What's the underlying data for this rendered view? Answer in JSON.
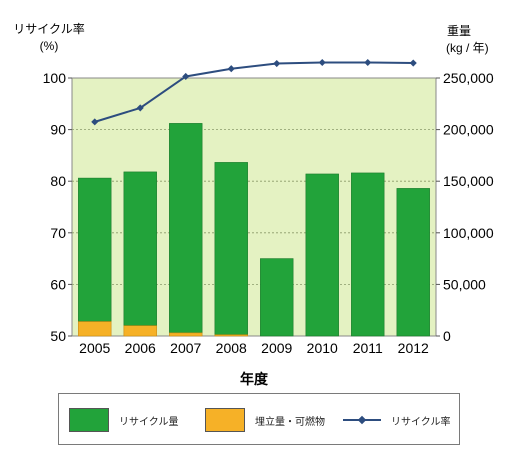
{
  "chart_data": {
    "type": "bar",
    "categories": [
      "2005",
      "2006",
      "2007",
      "2008",
      "2009",
      "2010",
      "2011",
      "2012"
    ],
    "series": [
      {
        "name": "リサイクル量",
        "axis": "right",
        "color": "#22a33a",
        "values": [
          139000,
          149000,
          203000,
          167000,
          75000,
          157000,
          158000,
          143000
        ]
      },
      {
        "name": "埋立量・可燃物",
        "axis": "right",
        "color": "#f6b127",
        "values": [
          14000,
          10000,
          3000,
          1200,
          0,
          0,
          0,
          0
        ]
      },
      {
        "name": "リサイクル率",
        "axis": "left",
        "type": "line",
        "color": "#2d4d7f",
        "values": [
          91.5,
          94.2,
          100.3,
          101.8,
          102.8,
          103.0,
          103.0,
          102.9
        ]
      }
    ],
    "left_axis": {
      "label_line1": "リサイクル率",
      "label_line2": "(%)",
      "ylim": [
        50,
        100
      ],
      "ticks": [
        "50",
        "60",
        "70",
        "80",
        "90",
        "100"
      ]
    },
    "right_axis": {
      "label_line1": "重量",
      "label_line2": "(kg / 年)",
      "ylim": [
        0,
        250000
      ],
      "ticks": [
        "0",
        "50,000",
        "100,000",
        "150,000",
        "200,000",
        "250,000"
      ]
    },
    "xlabel": "年度",
    "grid": true,
    "plot_background": "#e4f2c2"
  },
  "legend": {
    "items": [
      {
        "label": "リサイクル量",
        "color": "#22a33a"
      },
      {
        "label": "埋立量・可燃物",
        "color": "#f6b127"
      },
      {
        "label": "リサイクル率",
        "color": "#2d4d7f"
      }
    ]
  }
}
